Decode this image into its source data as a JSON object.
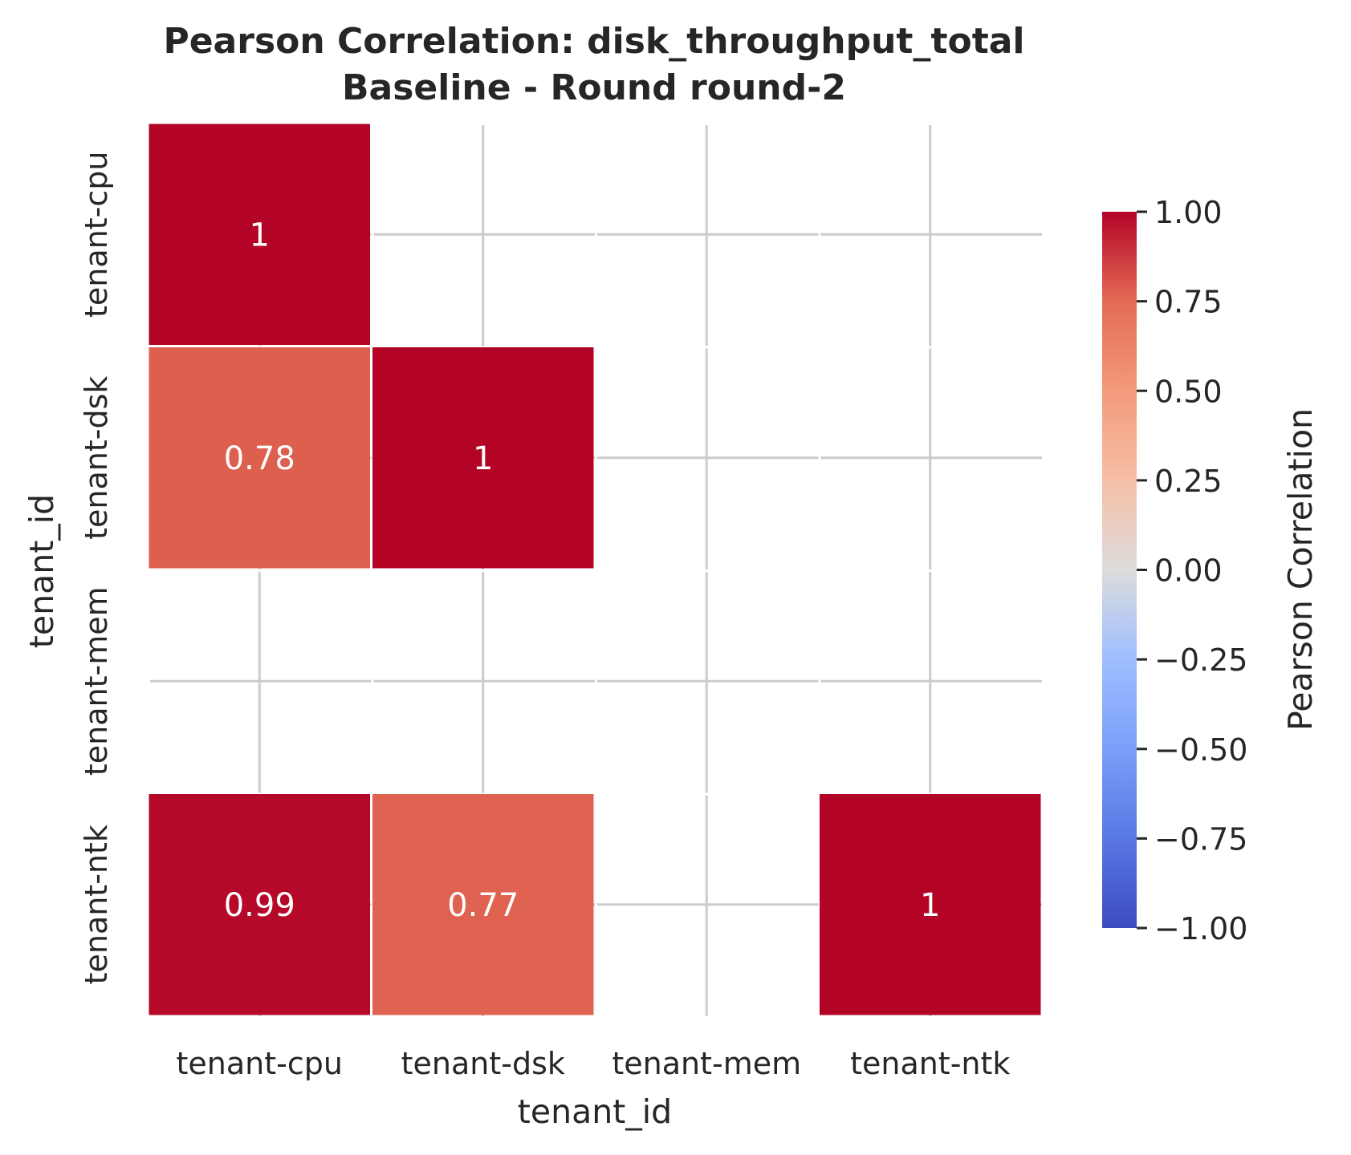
{
  "chart_data": {
    "type": "heatmap",
    "title_lines": [
      "Pearson Correlation: disk_throughput_total",
      "Baseline - Round round-2"
    ],
    "xlabel": "tenant_id",
    "ylabel": "tenant_id",
    "x_categories": [
      "tenant-cpu",
      "tenant-dsk",
      "tenant-mem",
      "tenant-ntk"
    ],
    "y_categories": [
      "tenant-cpu",
      "tenant-dsk",
      "tenant-mem",
      "tenant-ntk"
    ],
    "values": [
      [
        1,
        null,
        null,
        null
      ],
      [
        0.78,
        1,
        null,
        null
      ],
      [
        null,
        null,
        null,
        null
      ],
      [
        0.99,
        0.77,
        null,
        1
      ]
    ],
    "cell_labels": [
      [
        "1",
        "",
        "",
        ""
      ],
      [
        "0.78",
        "1",
        "",
        ""
      ],
      [
        "",
        "",
        "",
        ""
      ],
      [
        "0.99",
        "0.77",
        "",
        "1"
      ]
    ],
    "colorbar": {
      "label": "Pearson Correlation",
      "range": [
        -1.0,
        1.0
      ],
      "colormap": "coolwarm",
      "ticks": [
        "1.00",
        "0.75",
        "0.50",
        "0.25",
        "0.00",
        "−0.25",
        "−0.50",
        "−0.75",
        "−1.00"
      ],
      "tick_values": [
        1.0,
        0.75,
        0.5,
        0.25,
        0.0,
        -0.25,
        -0.5,
        -0.75,
        -1.0
      ]
    },
    "grid": true,
    "legend": "colorbar-right"
  }
}
